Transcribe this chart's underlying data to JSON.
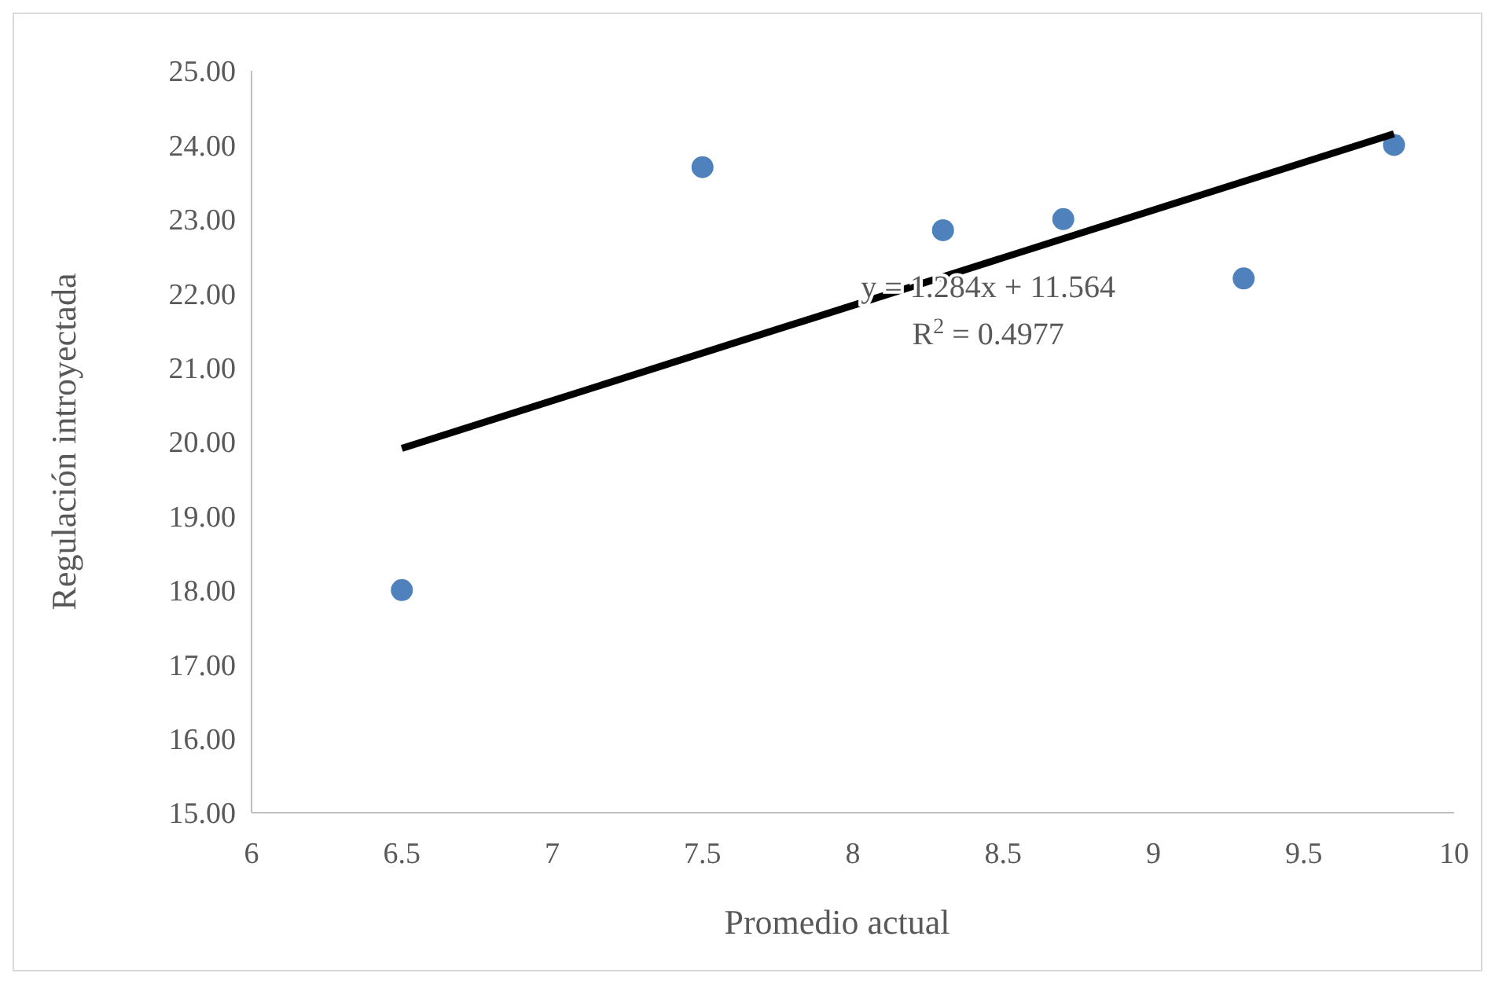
{
  "chart_data": {
    "type": "scatter",
    "xlabel": "Promedio actual",
    "ylabel": "Regulación introyectada",
    "xlim": [
      6,
      10
    ],
    "xticks": [
      6,
      6.5,
      7,
      7.5,
      8,
      8.5,
      9,
      9.5,
      10
    ],
    "ylim": [
      15,
      25
    ],
    "yticks": [
      {
        "value": 15,
        "label": "15.00"
      },
      {
        "value": 16,
        "label": "16.00"
      },
      {
        "value": 17,
        "label": "17.00"
      },
      {
        "value": 18,
        "label": "18.00"
      },
      {
        "value": 19,
        "label": "19.00"
      },
      {
        "value": 20,
        "label": "20.00"
      },
      {
        "value": 21,
        "label": "21.00"
      },
      {
        "value": 22,
        "label": "22.00"
      },
      {
        "value": 23,
        "label": "23.00"
      },
      {
        "value": 24,
        "label": "24.00"
      },
      {
        "value": 25,
        "label": "25.00"
      }
    ],
    "grid": false,
    "series": [
      {
        "color": "#4f81bd",
        "marker": "circle",
        "x": [
          6.5,
          7.5,
          8.3,
          8.7,
          9.3,
          9.8
        ],
        "values": [
          18.0,
          23.7,
          22.85,
          23.0,
          22.2,
          24.0
        ]
      },
      {
        "type": "line",
        "color": "#000000",
        "x": [
          6.5,
          9.8
        ],
        "values": [
          19.91,
          24.15
        ]
      }
    ],
    "annotations": [
      "y = 1.284x + 11.564",
      "R$^{2}$ = 0.4977"
    ]
  }
}
